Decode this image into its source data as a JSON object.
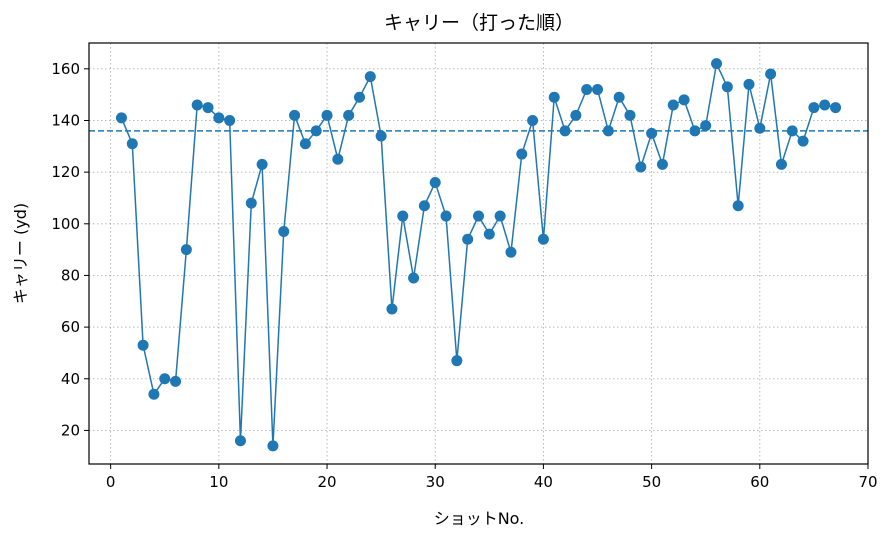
{
  "chart_data": {
    "type": "line",
    "title": "キャリー（打った順）",
    "xlabel": "ショットNo.",
    "ylabel": "キャリー (yd)",
    "xlim": [
      -2,
      70
    ],
    "ylim": [
      7,
      170
    ],
    "xticks": [
      0,
      10,
      20,
      30,
      40,
      50,
      60,
      70
    ],
    "yticks": [
      20,
      40,
      60,
      80,
      100,
      120,
      140,
      160
    ],
    "grid": true,
    "colors": {
      "series": "#1f77b4",
      "grid": "#b0b0b0"
    },
    "reference_line": {
      "y": 136,
      "style": "dashed"
    },
    "series": [
      {
        "x": [
          1,
          2,
          3,
          4,
          5,
          6,
          7,
          8,
          9,
          10,
          11,
          12,
          13,
          14,
          15,
          16,
          17,
          18,
          19,
          20,
          21,
          22,
          23,
          24,
          25,
          26,
          27,
          28,
          29,
          30,
          31,
          32,
          33,
          34,
          35,
          36,
          37,
          38,
          39,
          40,
          41,
          42,
          43,
          44,
          45,
          46,
          47,
          48,
          49,
          50,
          51,
          52,
          53,
          54,
          55,
          56,
          57,
          58,
          59,
          60,
          61,
          62,
          63,
          64,
          65,
          66,
          67
        ],
        "y": [
          141,
          131,
          53,
          34,
          40,
          39,
          90,
          146,
          145,
          141,
          140,
          16,
          108,
          123,
          14,
          97,
          142,
          131,
          136,
          142,
          125,
          142,
          149,
          157,
          134,
          67,
          103,
          79,
          107,
          116,
          103,
          47,
          94,
          103,
          96,
          103,
          89,
          127,
          140,
          94,
          149,
          136,
          142,
          152,
          152,
          136,
          149,
          142,
          122,
          135,
          123,
          146,
          148,
          136,
          138,
          162,
          153,
          107,
          154,
          137,
          158,
          123,
          136,
          132,
          145,
          146,
          145
        ]
      }
    ]
  }
}
